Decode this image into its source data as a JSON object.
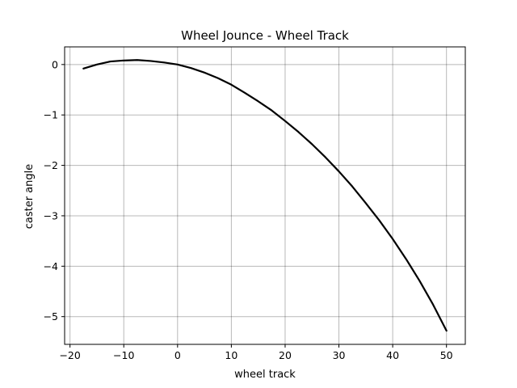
{
  "chart_data": {
    "type": "line",
    "title": "Wheel Jounce - Wheel Track",
    "xlabel": "wheel track",
    "ylabel": "caster angle",
    "xlim": [
      -21,
      53.5
    ],
    "ylim": [
      -5.55,
      0.35
    ],
    "xticks": [
      -20,
      -10,
      0,
      10,
      20,
      30,
      40,
      50
    ],
    "xtick_labels": [
      "−20",
      "−10",
      "0",
      "10",
      "20",
      "30",
      "40",
      "50"
    ],
    "yticks": [
      0,
      -1,
      -2,
      -3,
      -4,
      -5
    ],
    "ytick_labels": [
      "0",
      "−1",
      "−2",
      "−3",
      "−4",
      "−5"
    ],
    "grid": true,
    "legend": "none",
    "series": [
      {
        "color": "#000000",
        "x": [
          -17.5,
          -15,
          -12.5,
          -10,
          -7.5,
          -5,
          -2.5,
          0,
          2.5,
          5,
          7.5,
          10,
          12.5,
          15,
          17.5,
          20,
          22.5,
          25,
          27.5,
          30,
          32.5,
          35,
          37.5,
          40,
          42.5,
          45,
          47.5,
          50
        ],
        "y": [
          -0.08,
          0.0,
          0.06,
          0.08,
          0.09,
          0.07,
          0.04,
          0.0,
          -0.07,
          -0.16,
          -0.27,
          -0.4,
          -0.56,
          -0.73,
          -0.91,
          -1.12,
          -1.34,
          -1.58,
          -1.84,
          -2.12,
          -2.42,
          -2.75,
          -3.09,
          -3.46,
          -3.86,
          -4.29,
          -4.76,
          -5.28
        ]
      }
    ]
  }
}
